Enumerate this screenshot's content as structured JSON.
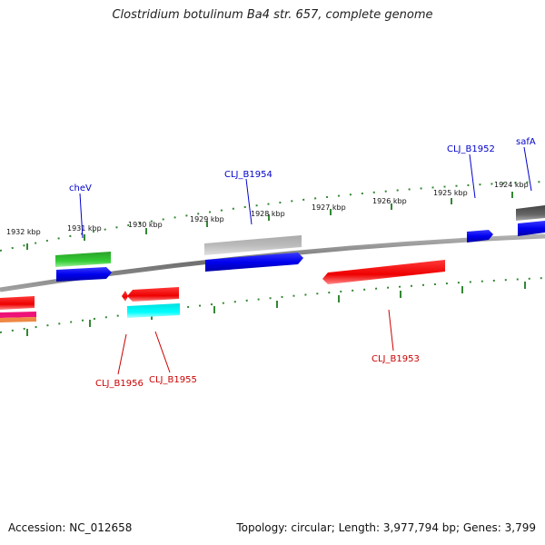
{
  "title": "Clostridium botulinum Ba4 str. 657, complete genome",
  "footer": {
    "accession": "Accession: NC_012658",
    "summary": "Topology: circular; Length: 3,977,794 bp; Genes: 3,799"
  },
  "colors": {
    "forward_label": "#0000cc",
    "reverse_label": "#cc0000",
    "backbone": "#8a8a8a",
    "tick": "#338833"
  },
  "ticks": [
    {
      "label": "1932 kbp"
    },
    {
      "label": "1931 kbp"
    },
    {
      "label": "1930 kbp"
    },
    {
      "label": "1929 kbp"
    },
    {
      "label": "1928 kbp"
    },
    {
      "label": "1927 kbp"
    },
    {
      "label": "1926 kbp"
    },
    {
      "label": "1925 kbp"
    },
    {
      "label": "1924 kbp"
    }
  ],
  "genes": [
    {
      "label": "cheV",
      "strand": "forward"
    },
    {
      "label": "CLJ_B1954",
      "strand": "forward"
    },
    {
      "label": "CLJ_B1952",
      "strand": "forward"
    },
    {
      "label": "safA",
      "strand": "forward"
    },
    {
      "label": "CLJ_B1956",
      "strand": "reverse"
    },
    {
      "label": "CLJ_B1955",
      "strand": "reverse"
    },
    {
      "label": "CLJ_B1953",
      "strand": "reverse"
    }
  ]
}
